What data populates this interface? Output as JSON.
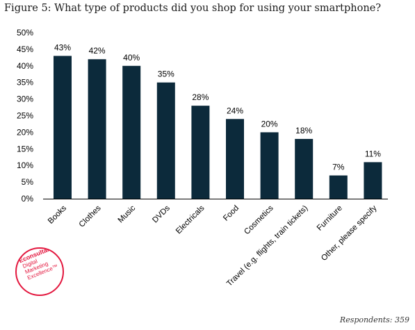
{
  "figure_title": "Figure 5: What type of products did you shop for using your smartphone?",
  "respondents": "Respondents: 359",
  "logo": {
    "brand": "Econsultancy",
    "lines": [
      "Digital",
      "Marketing",
      "Excellence™"
    ]
  },
  "colors": {
    "bar": "#0c2a3b",
    "axis": "#000000",
    "logo": "#e3173e"
  },
  "chart_data": {
    "type": "bar",
    "title": "",
    "xlabel": "",
    "ylabel": "",
    "ylim": [
      0,
      50
    ],
    "yticks": [
      "0%",
      "5%",
      "10%",
      "15%",
      "20%",
      "25%",
      "30%",
      "35%",
      "40%",
      "45%",
      "50%"
    ],
    "grid": false,
    "legend": "none",
    "categories": [
      "Books",
      "Clothes",
      "Music",
      "DVDs",
      "Electricals",
      "Food",
      "Cosmetics",
      "Travel (e.g. flights, train tickets)",
      "Furniture",
      "Other, please specify"
    ],
    "values": [
      43,
      42,
      40,
      35,
      28,
      24,
      20,
      18,
      7,
      11
    ],
    "data_labels": [
      "43%",
      "42%",
      "40%",
      "35%",
      "28%",
      "24%",
      "20%",
      "18%",
      "7%",
      "11%"
    ]
  }
}
